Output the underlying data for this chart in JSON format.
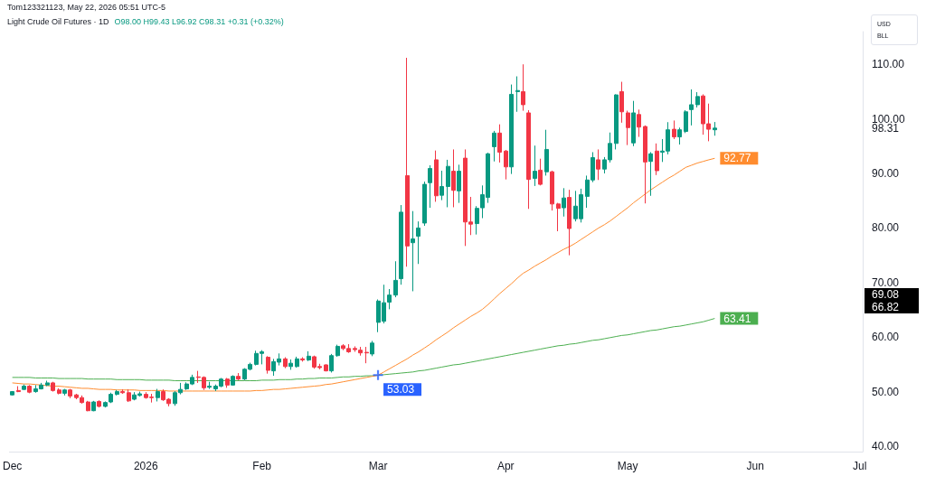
{
  "chart_data": {
    "type": "candlestick",
    "title": "Light Crude Oil Futures · 1D",
    "subtitle": "O98.00 H99.43 L96.92 C98.31 +0.31 (+0.32%)",
    "annotations": [
      "Tom123321123, May 22, 2026 05:51 UTC-5",
      "USD",
      "BLL",
      "69.08",
      "66.82"
    ],
    "categories": [
      "Dec",
      null,
      null,
      null,
      null,
      null,
      null,
      null,
      null,
      null,
      null,
      null,
      null,
      null,
      null,
      null,
      null,
      null,
      null,
      null,
      null,
      null,
      null,
      "2026",
      null,
      null,
      null,
      null,
      null,
      null,
      null,
      null,
      null,
      null,
      null,
      null,
      null,
      null,
      null,
      null,
      null,
      null,
      null,
      "Feb",
      null,
      null,
      null,
      null,
      null,
      null,
      null,
      null,
      null,
      null,
      null,
      null,
      null,
      null,
      null,
      null,
      null,
      null,
      null,
      "Mar",
      null,
      null,
      null,
      null,
      null,
      null,
      null,
      null,
      null,
      null,
      null,
      null,
      null,
      null,
      null,
      null,
      null,
      null,
      null,
      null,
      null,
      "Apr",
      null,
      null,
      null,
      null,
      null,
      null,
      null,
      null,
      null,
      null,
      null,
      null,
      null,
      null,
      null,
      null,
      null,
      null,
      null,
      null,
      "May",
      null,
      null,
      null,
      null,
      null,
      null,
      null,
      null,
      null,
      null,
      null,
      null,
      null,
      null,
      null,
      null,
      null,
      null,
      null,
      null,
      null,
      "Jun",
      null,
      null,
      null,
      null,
      null,
      null,
      null,
      null,
      null,
      null,
      null,
      null,
      null,
      null,
      null,
      null,
      null,
      "Jul"
    ],
    "ylim": [
      39,
      116
    ],
    "yticks": [
      {
        "value": 40,
        "label": "40.00"
      },
      {
        "value": 50,
        "label": "50.00"
      },
      {
        "value": 60,
        "label": "60.00"
      },
      {
        "value": 70,
        "label": "70.00"
      },
      {
        "value": 80,
        "label": "80.00"
      },
      {
        "value": 90,
        "label": "90.00"
      },
      {
        "value": 100,
        "label": "100.00"
      },
      {
        "value": 110,
        "label": "110.00"
      }
    ],
    "series": [
      {
        "type": "line",
        "color": "#4caf50",
        "marker": "none",
        "values": [
          52.6,
          52.6,
          52.6,
          52.6,
          52.5,
          52.5,
          52.5,
          52.5,
          52.4,
          52.4,
          52.4,
          52.4,
          52.4,
          52.3,
          52.3,
          52.3,
          52.3,
          52.3,
          52.2,
          52.2,
          52.2,
          52.2,
          52.2,
          52.1,
          52.1,
          52.1,
          52.1,
          52.1,
          52.0,
          52.0,
          52.0,
          52.0,
          52.0,
          52.0,
          52.0,
          52.0,
          52.0,
          52.0,
          52.0,
          52.0,
          52.0,
          52.0,
          52.0,
          52.1,
          52.1,
          52.1,
          52.2,
          52.2,
          52.2,
          52.3,
          52.3,
          52.4,
          52.4,
          52.5,
          52.5,
          52.5,
          52.6,
          52.7,
          52.7,
          52.8,
          52.8,
          52.9,
          52.9,
          53.0,
          53.1,
          53.2,
          53.3,
          53.4,
          53.5,
          53.6,
          53.8,
          53.9,
          54.1,
          54.3,
          54.5,
          54.7,
          54.9,
          55.0,
          55.2,
          55.4,
          55.6,
          55.8,
          56.0,
          56.2,
          56.4,
          56.6,
          56.8,
          57.0,
          57.2,
          57.4,
          57.6,
          57.8,
          58.0,
          58.2,
          58.4,
          58.5,
          58.7,
          58.8,
          59.0,
          59.2,
          59.4,
          59.5,
          59.7,
          59.9,
          60.1,
          60.3,
          60.4,
          60.6,
          60.8,
          61.0,
          61.2,
          61.3,
          61.5,
          61.7,
          61.9,
          62.0,
          62.2,
          62.4,
          62.6,
          62.8,
          63.1,
          63.41,
          null,
          null,
          null,
          null,
          null,
          null,
          null,
          null,
          null,
          null,
          null,
          null,
          null,
          null,
          null,
          null,
          null,
          null,
          null,
          null,
          null,
          null,
          null,
          null,
          null
        ],
        "value_labels": [
          null,
          null,
          null,
          null,
          null,
          null,
          null,
          null,
          null,
          null,
          null,
          null,
          null,
          null,
          null,
          null,
          null,
          null,
          null,
          null,
          null,
          null,
          null,
          null,
          null,
          null,
          null,
          null,
          null,
          null,
          null,
          null,
          null,
          null,
          null,
          null,
          null,
          null,
          null,
          null,
          null,
          null,
          null,
          null,
          null,
          null,
          null,
          null,
          null,
          null,
          null,
          null,
          null,
          null,
          null,
          null,
          null,
          null,
          null,
          null,
          null,
          null,
          null,
          null,
          null,
          null,
          null,
          null,
          null,
          null,
          null,
          null,
          null,
          null,
          null,
          null,
          null,
          null,
          null,
          null,
          null,
          null,
          null,
          null,
          null,
          null,
          null,
          null,
          null,
          null,
          null,
          null,
          null,
          null,
          null,
          null,
          null,
          null,
          null,
          null,
          null,
          null,
          null,
          null,
          null,
          null,
          null,
          null,
          null,
          null,
          null,
          null,
          null,
          null,
          null,
          null,
          null,
          null,
          null,
          null,
          null,
          "63.41",
          null,
          null,
          null,
          null,
          null,
          null,
          null,
          null,
          null,
          null,
          null,
          null,
          null,
          null,
          null,
          null,
          null,
          null,
          null,
          null,
          null,
          null,
          null,
          null,
          null
        ]
      },
      {
        "type": "line",
        "color": "#ff8c2f",
        "marker": "none",
        "values": [
          51.6,
          51.5,
          51.4,
          51.4,
          51.3,
          51.2,
          51.1,
          51.0,
          51.0,
          50.9,
          50.8,
          50.7,
          50.6,
          50.6,
          50.5,
          50.4,
          50.4,
          50.4,
          50.3,
          50.3,
          50.3,
          50.3,
          50.2,
          50.2,
          50.2,
          50.2,
          50.2,
          50.1,
          50.1,
          50.1,
          50.1,
          50.1,
          50.1,
          50.1,
          50.1,
          50.1,
          50.1,
          50.1,
          50.1,
          50.1,
          50.1,
          50.1,
          50.2,
          50.2,
          50.3,
          50.4,
          50.4,
          50.5,
          50.6,
          50.7,
          50.8,
          50.9,
          51.0,
          51.1,
          51.3,
          51.4,
          51.6,
          51.8,
          52.0,
          52.2,
          52.4,
          52.6,
          52.8,
          53.0,
          53.6,
          54.2,
          54.8,
          55.4,
          56.0,
          56.7,
          57.3,
          58.0,
          58.7,
          59.5,
          60.2,
          60.9,
          61.7,
          62.4,
          63.1,
          63.8,
          64.4,
          65.1,
          66.0,
          67.0,
          68.0,
          68.9,
          69.8,
          70.8,
          71.7,
          72.3,
          73.0,
          73.6,
          74.2,
          74.9,
          75.5,
          76.1,
          76.6,
          77.2,
          77.9,
          78.6,
          79.3,
          80.0,
          80.6,
          81.3,
          82.1,
          82.9,
          83.7,
          84.6,
          85.4,
          86.2,
          87.0,
          87.7,
          88.4,
          89.1,
          89.7,
          90.4,
          91.1,
          91.5,
          91.9,
          92.2,
          92.5,
          92.77,
          null,
          null,
          null,
          null,
          null,
          null,
          null,
          null,
          null,
          null,
          null,
          null,
          null,
          null,
          null,
          null,
          null,
          null,
          null,
          null,
          null,
          null,
          null,
          null,
          null
        ],
        "value_labels": [
          null,
          null,
          null,
          null,
          null,
          null,
          null,
          null,
          null,
          null,
          null,
          null,
          null,
          null,
          null,
          null,
          null,
          null,
          null,
          null,
          null,
          null,
          null,
          null,
          null,
          null,
          null,
          null,
          null,
          null,
          null,
          null,
          null,
          null,
          null,
          null,
          null,
          null,
          null,
          null,
          null,
          null,
          null,
          null,
          null,
          null,
          null,
          null,
          null,
          null,
          null,
          null,
          null,
          null,
          null,
          null,
          null,
          null,
          null,
          null,
          null,
          null,
          null,
          null,
          null,
          null,
          null,
          null,
          null,
          null,
          null,
          null,
          null,
          null,
          null,
          null,
          null,
          null,
          null,
          null,
          null,
          null,
          null,
          null,
          null,
          null,
          null,
          null,
          null,
          null,
          null,
          null,
          null,
          null,
          null,
          null,
          null,
          null,
          null,
          null,
          null,
          null,
          null,
          null,
          null,
          null,
          null,
          null,
          null,
          null,
          null,
          null,
          null,
          null,
          null,
          null,
          null,
          null,
          null,
          null,
          null,
          "92.77",
          null,
          null,
          null,
          null,
          null,
          null,
          null,
          null,
          null,
          null,
          null,
          null,
          null,
          null,
          null,
          null,
          null,
          null,
          null,
          null,
          null,
          null,
          null,
          null,
          null
        ]
      },
      {
        "ohlc": [
          [
            49.4,
            50.1,
            49.3,
            50.0
          ],
          [
            50.2,
            51.0,
            49.9,
            50.0
          ],
          [
            50.4,
            51.3,
            50.3,
            51.0
          ],
          [
            51.0,
            51.2,
            49.7,
            49.9
          ],
          [
            50.0,
            51.2,
            49.8,
            50.5
          ],
          [
            50.5,
            51.6,
            50.4,
            51.2
          ],
          [
            51.2,
            52.0,
            51.0,
            51.6
          ],
          [
            51.6,
            51.8,
            50.0,
            50.2
          ],
          [
            50.3,
            50.6,
            49.5,
            49.7
          ],
          [
            49.7,
            50.5,
            49.3,
            50.3
          ],
          [
            50.3,
            50.5,
            48.8,
            49.2
          ],
          [
            49.4,
            49.6,
            48.6,
            48.9
          ],
          [
            48.9,
            49.3,
            47.8,
            48.0
          ],
          [
            48.1,
            48.3,
            46.4,
            46.5
          ],
          [
            46.5,
            48.3,
            46.4,
            48.1
          ],
          [
            48.2,
            48.4,
            47.1,
            47.3
          ],
          [
            47.3,
            48.2,
            47.1,
            48.0
          ],
          [
            48.1,
            49.8,
            47.9,
            49.5
          ],
          [
            49.5,
            50.3,
            49.3,
            50.0
          ],
          [
            50.0,
            50.4,
            49.6,
            49.8
          ],
          [
            49.8,
            50.4,
            48.1,
            48.3
          ],
          [
            48.6,
            49.9,
            48.4,
            49.4
          ],
          [
            49.3,
            50.0,
            49.1,
            49.6
          ],
          [
            49.5,
            49.9,
            48.7,
            48.9
          ],
          [
            49.0,
            49.6,
            48.0,
            48.9
          ],
          [
            48.9,
            50.5,
            48.2,
            50.0
          ],
          [
            50.0,
            50.4,
            48.3,
            48.5
          ],
          [
            48.6,
            48.8,
            47.3,
            47.8
          ],
          [
            47.8,
            50.1,
            47.4,
            49.8
          ],
          [
            49.8,
            51.6,
            49.5,
            50.4
          ],
          [
            50.5,
            51.7,
            50.3,
            51.4
          ],
          [
            51.4,
            53.1,
            51.2,
            52.6
          ],
          [
            52.7,
            53.8,
            51.6,
            52.6
          ],
          [
            52.6,
            52.8,
            50.3,
            50.7
          ],
          [
            50.8,
            51.8,
            50.5,
            51.0
          ],
          [
            50.5,
            51.3,
            50.1,
            51.0
          ],
          [
            51.0,
            52.5,
            50.8,
            52.3
          ],
          [
            52.3,
            52.5,
            50.7,
            51.2
          ],
          [
            51.2,
            53.0,
            51.1,
            52.8
          ],
          [
            52.8,
            53.4,
            52.1,
            52.3
          ],
          [
            52.3,
            54.3,
            52.1,
            54.1
          ],
          [
            54.1,
            55.3,
            53.9,
            55.0
          ],
          [
            55.0,
            57.5,
            54.8,
            57.0
          ],
          [
            57.0,
            57.6,
            55.0,
            57.3
          ],
          [
            56.3,
            56.5,
            53.3,
            53.9
          ],
          [
            53.8,
            56.0,
            52.9,
            55.5
          ],
          [
            55.4,
            57.0,
            54.8,
            56.0
          ],
          [
            56.0,
            56.3,
            54.3,
            54.6
          ],
          [
            54.6,
            55.9,
            54.0,
            55.2
          ],
          [
            54.6,
            56.4,
            54.4,
            56.0
          ],
          [
            56.0,
            56.3,
            55.5,
            55.8
          ],
          [
            55.8,
            57.4,
            55.6,
            56.5
          ],
          [
            56.4,
            56.6,
            54.2,
            54.5
          ],
          [
            54.6,
            55.1,
            54.1,
            54.4
          ],
          [
            54.9,
            55.0,
            53.7,
            53.8
          ],
          [
            53.8,
            56.9,
            53.5,
            56.6
          ],
          [
            56.6,
            58.6,
            56.4,
            58.3
          ],
          [
            58.4,
            58.7,
            57.6,
            57.9
          ],
          [
            57.9,
            58.7,
            57.1,
            57.3
          ],
          [
            57.9,
            58.3,
            57.3,
            57.7
          ],
          [
            57.6,
            58.2,
            56.6,
            57.1
          ],
          [
            57.2,
            58.2,
            55.2,
            57.1
          ],
          [
            56.9,
            59.3,
            56.5,
            58.9
          ],
          [
            62.7,
            66.9,
            60.9,
            66.6
          ],
          [
            62.9,
            69.6,
            62.5,
            66.3
          ],
          [
            66.4,
            68.8,
            65.1,
            67.7
          ],
          [
            67.7,
            73.9,
            67.3,
            70.4
          ],
          [
            70.7,
            84.2,
            69.6,
            82.9
          ],
          [
            89.6,
            111.2,
            72.9,
            76.7
          ],
          [
            77.3,
            83.1,
            68.4,
            78.0
          ],
          [
            78.5,
            81.2,
            73.4,
            80.0
          ],
          [
            80.9,
            88.5,
            80.4,
            88.0
          ],
          [
            88.3,
            91.5,
            83.7,
            90.9
          ],
          [
            92.5,
            94.2,
            84.8,
            85.9
          ],
          [
            86.0,
            90.5,
            85.1,
            87.6
          ],
          [
            87.6,
            92.5,
            83.8,
            91.3
          ],
          [
            90.4,
            94.4,
            83.8,
            86.9
          ],
          [
            86.8,
            91.6,
            84.6,
            90.4
          ],
          [
            92.8,
            94.4,
            76.7,
            81.1
          ],
          [
            81.1,
            85.7,
            78.7,
            80.7
          ],
          [
            80.8,
            84.0,
            78.8,
            83.6
          ],
          [
            83.7,
            87.8,
            81.8,
            86.1
          ],
          [
            85.6,
            93.8,
            84.6,
            93.6
          ],
          [
            94.9,
            97.8,
            92.2,
            97.4
          ],
          [
            97.4,
            99.0,
            92.0,
            93.9
          ],
          [
            94.1,
            94.3,
            88.9,
            91.2
          ],
          [
            91.2,
            106.3,
            89.9,
            104.5
          ],
          [
            105.0,
            107.8,
            101.3,
            105.2
          ],
          [
            105.0,
            110.0,
            101.5,
            102.6
          ],
          [
            101.1,
            101.6,
            83.5,
            88.9
          ],
          [
            89.1,
            95.1,
            87.7,
            90.4
          ],
          [
            90.6,
            92.7,
            87.8,
            88.0
          ],
          [
            90.3,
            98.0,
            89.6,
            94.4
          ],
          [
            90.3,
            90.5,
            83.2,
            84.4
          ],
          [
            84.4,
            84.6,
            79.4,
            83.6
          ],
          [
            83.7,
            87.3,
            82.1,
            85.5
          ],
          [
            85.6,
            87.0,
            75.0,
            79.9
          ],
          [
            81.7,
            86.8,
            81.2,
            84.0
          ],
          [
            81.7,
            87.2,
            81.0,
            86.1
          ],
          [
            85.8,
            89.6,
            83.7,
            88.8
          ],
          [
            88.8,
            93.9,
            88.4,
            92.9
          ],
          [
            92.5,
            94.4,
            88.8,
            90.8
          ],
          [
            90.8,
            93.0,
            90.0,
            92.5
          ],
          [
            92.5,
            97.5,
            92.0,
            95.5
          ],
          [
            95.5,
            104.5,
            94.4,
            104.4
          ],
          [
            105.0,
            106.8,
            99.3,
            101.3
          ],
          [
            101.1,
            101.5,
            95.2,
            98.4
          ],
          [
            95.6,
            103.3,
            95.0,
            101.1
          ],
          [
            100.8,
            101.7,
            96.7,
            98.5
          ],
          [
            98.6,
            98.8,
            84.5,
            92.1
          ],
          [
            92.2,
            93.9,
            85.9,
            93.6
          ],
          [
            94.1,
            95.5,
            89.7,
            90.5
          ],
          [
            93.9,
            96.3,
            92.1,
            94.1
          ],
          [
            94.1,
            99.4,
            93.5,
            98.0
          ],
          [
            98.1,
            99.7,
            96.3,
            96.7
          ],
          [
            96.7,
            98.4,
            95.3,
            98.0
          ],
          [
            97.7,
            101.6,
            97.4,
            101.3
          ],
          [
            101.7,
            105.4,
            98.8,
            102.6
          ],
          [
            102.6,
            104.9,
            102.1,
            104.1
          ],
          [
            104.2,
            104.5,
            97.1,
            99.1
          ],
          [
            99.1,
            102.8,
            95.9,
            98.1
          ],
          [
            98.0,
            99.43,
            96.92,
            98.31
          ],
          null,
          null,
          null,
          null,
          null,
          null,
          null,
          null,
          null,
          null,
          null,
          null,
          null,
          null,
          null,
          null,
          null,
          null,
          null,
          null,
          null,
          null,
          null,
          null,
          null
        ],
        "value_labels": [
          null,
          null,
          null,
          null,
          null,
          null,
          null,
          null,
          null,
          null,
          null,
          null,
          null,
          null,
          null,
          null,
          null,
          null,
          null,
          null,
          null,
          null,
          null,
          null,
          null,
          null,
          null,
          null,
          null,
          null,
          null,
          null,
          null,
          null,
          null,
          null,
          null,
          null,
          null,
          null,
          null,
          null,
          null,
          null,
          null,
          null,
          null,
          null,
          null,
          null,
          null,
          null,
          null,
          null,
          null,
          null,
          null,
          null,
          null,
          null,
          null,
          null,
          null,
          null,
          null,
          null,
          null,
          null,
          null,
          null,
          null,
          null,
          null,
          null,
          null,
          null,
          null,
          null,
          null,
          null,
          null,
          null,
          null,
          null,
          null,
          null,
          null,
          null,
          null,
          null,
          null,
          null,
          null,
          null,
          null,
          null,
          null,
          null,
          null,
          null,
          null,
          null,
          null,
          null,
          null,
          null,
          null,
          null,
          null,
          null,
          null,
          null,
          null,
          null,
          null,
          null,
          null,
          null,
          null,
          null,
          null,
          "98.31",
          null,
          null,
          null,
          null,
          null,
          null,
          null,
          null,
          null,
          null,
          null,
          null,
          null,
          null,
          null,
          null,
          null,
          null,
          null,
          null,
          null,
          null,
          null,
          null,
          null
        ],
        "colors": [
          "#089981",
          "#f23645",
          "#089981",
          "#f23645",
          "#089981",
          "#089981",
          "#089981",
          "#f23645",
          "#f23645",
          "#089981",
          "#f23645",
          "#f23645",
          "#f23645",
          "#f23645",
          "#089981",
          "#f23645",
          "#089981",
          "#089981",
          "#089981",
          "#f23645",
          "#f23645",
          "#089981",
          "#089981",
          "#f23645",
          "#f23645",
          "#089981",
          "#f23645",
          "#f23645",
          "#089981",
          "#089981",
          "#089981",
          "#089981",
          "#f23645",
          "#f23645",
          "#089981",
          "#089981",
          "#089981",
          "#f23645",
          "#089981",
          "#f23645",
          "#089981",
          "#089981",
          "#089981",
          "#089981",
          "#f23645",
          "#089981",
          "#089981",
          "#f23645",
          "#089981",
          "#089981",
          "#f23645",
          "#089981",
          "#f23645",
          "#f23645",
          "#f23645",
          "#089981",
          "#089981",
          "#f23645",
          "#f23645",
          "#f23645",
          "#f23645",
          "#f23645",
          "#089981",
          "#089981",
          "#089981",
          "#089981",
          "#089981",
          "#089981",
          "#f23645",
          "#089981",
          "#089981",
          "#089981",
          "#089981",
          "#f23645",
          "#089981",
          "#089981",
          "#f23645",
          "#089981",
          "#f23645",
          "#f23645",
          "#089981",
          "#089981",
          "#089981",
          "#089981",
          "#f23645",
          "#f23645",
          "#089981",
          "#089981",
          "#f23645",
          "#f23645",
          "#089981",
          "#f23645",
          "#089981",
          "#f23645",
          "#f23645",
          "#089981",
          "#f23645",
          "#089981",
          "#089981",
          "#089981",
          "#089981",
          "#f23645",
          "#089981",
          "#089981",
          "#089981",
          "#f23645",
          "#f23645",
          "#089981",
          "#f23645",
          "#f23645",
          "#089981",
          "#f23645",
          "#089981",
          "#089981",
          "#f23645",
          "#089981",
          "#089981",
          "#089981",
          "#089981",
          "#f23645",
          "#f23645",
          "#089981",
          null,
          null,
          null,
          null,
          null,
          null,
          null,
          null,
          null,
          null,
          null,
          null,
          null,
          null,
          null,
          null,
          null,
          null,
          null,
          null,
          null,
          null,
          null,
          null,
          null
        ]
      },
      {
        "type": "scatter",
        "color": "#2962ff",
        "marker": "cross",
        "x": [
          "Mar"
        ],
        "values": [
          53.03
        ],
        "value_labels": [
          "53.03"
        ]
      }
    ]
  }
}
